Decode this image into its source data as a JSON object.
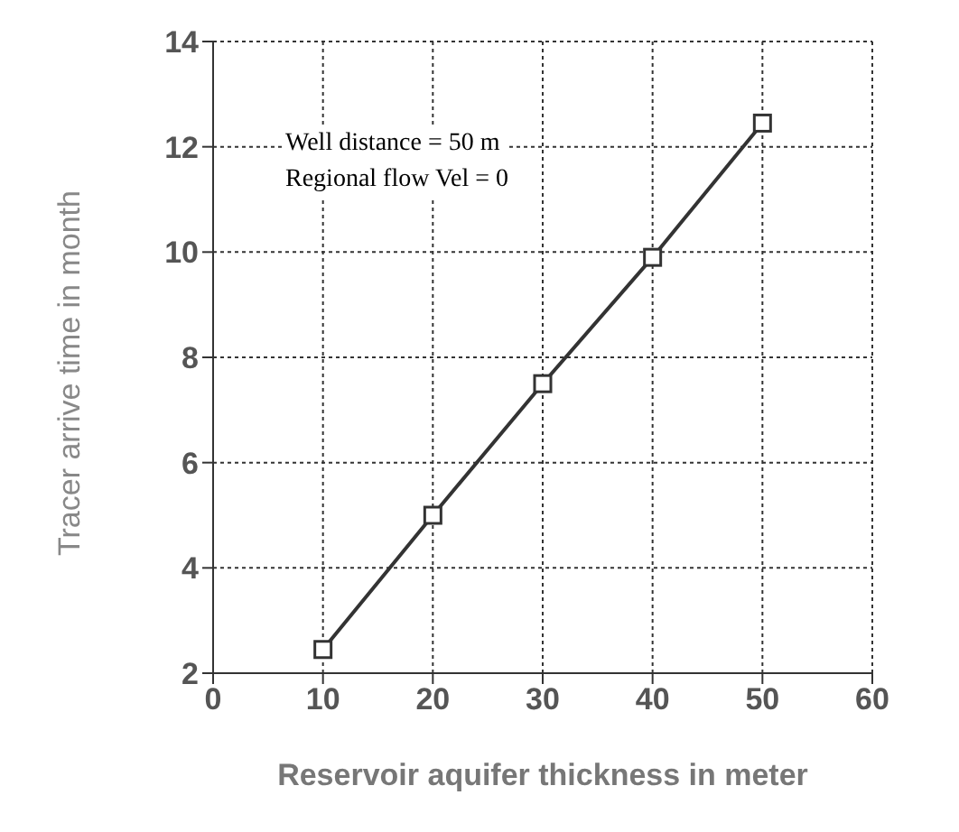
{
  "chart_data": {
    "type": "line",
    "xlabel": "Reservoir aquifer thickness in meter",
    "ylabel": "Tracer arrive time in month",
    "annotations": [
      "Well distance = 50 m",
      "Regional flow Vel = 0"
    ],
    "x": [
      10,
      20,
      30,
      40,
      50
    ],
    "series": [
      {
        "color": "#333333",
        "values": [
          2.45,
          5.0,
          7.5,
          9.9,
          12.45
        ]
      }
    ],
    "xlim": [
      0,
      60
    ],
    "xticks": [
      0,
      10,
      20,
      30,
      40,
      50,
      60
    ],
    "ylim": [
      2,
      14
    ],
    "yticks": [
      2,
      4,
      6,
      8,
      10,
      12,
      14
    ],
    "grid": true,
    "marker": "square",
    "line_style": "solid"
  }
}
